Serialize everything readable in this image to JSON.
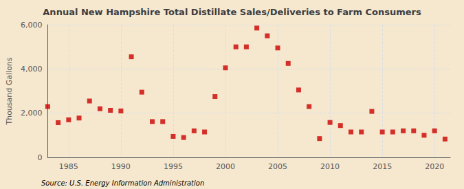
{
  "chart_data": {
    "type": "scatter",
    "title": "Annual New Hampshire Total Distillate Sales/Deliveries to Farm Consumers",
    "ylabel": "Thousand Gallons",
    "annotations": [
      "Source: U.S. Energy Information Administration"
    ],
    "x": [
      1983,
      1984,
      1985,
      1986,
      1987,
      1988,
      1989,
      1990,
      1991,
      1992,
      1993,
      1994,
      1995,
      1996,
      1997,
      1998,
      1999,
      2000,
      2001,
      2002,
      2003,
      2004,
      2005,
      2006,
      2007,
      2008,
      2009,
      2010,
      2011,
      2012,
      2013,
      2014,
      2015,
      2016,
      2017,
      2018,
      2019,
      2020,
      2021
    ],
    "values": [
      2300,
      1570,
      1700,
      1780,
      2550,
      2200,
      2130,
      2100,
      4550,
      2950,
      1620,
      1620,
      950,
      900,
      1200,
      1150,
      2750,
      4050,
      5000,
      5000,
      5850,
      5500,
      4950,
      4250,
      3050,
      2300,
      850,
      1580,
      1440,
      1150,
      1150,
      2080,
      1150,
      1150,
      1200,
      1200,
      1000,
      1200,
      830
    ],
    "color": "#cc0000",
    "marker": "square",
    "xlim": [
      1983,
      2021.5
    ],
    "xticks": [
      1985,
      1990,
      1995,
      2000,
      2005,
      2010,
      2015,
      2020
    ],
    "ylim": [
      0,
      6000
    ],
    "yticks": [
      0,
      {
        "value": 2000,
        "label": "2,000"
      },
      {
        "value": 4000,
        "label": "4,000"
      },
      {
        "value": 6000,
        "label": "6,000"
      }
    ],
    "grid": true
  }
}
